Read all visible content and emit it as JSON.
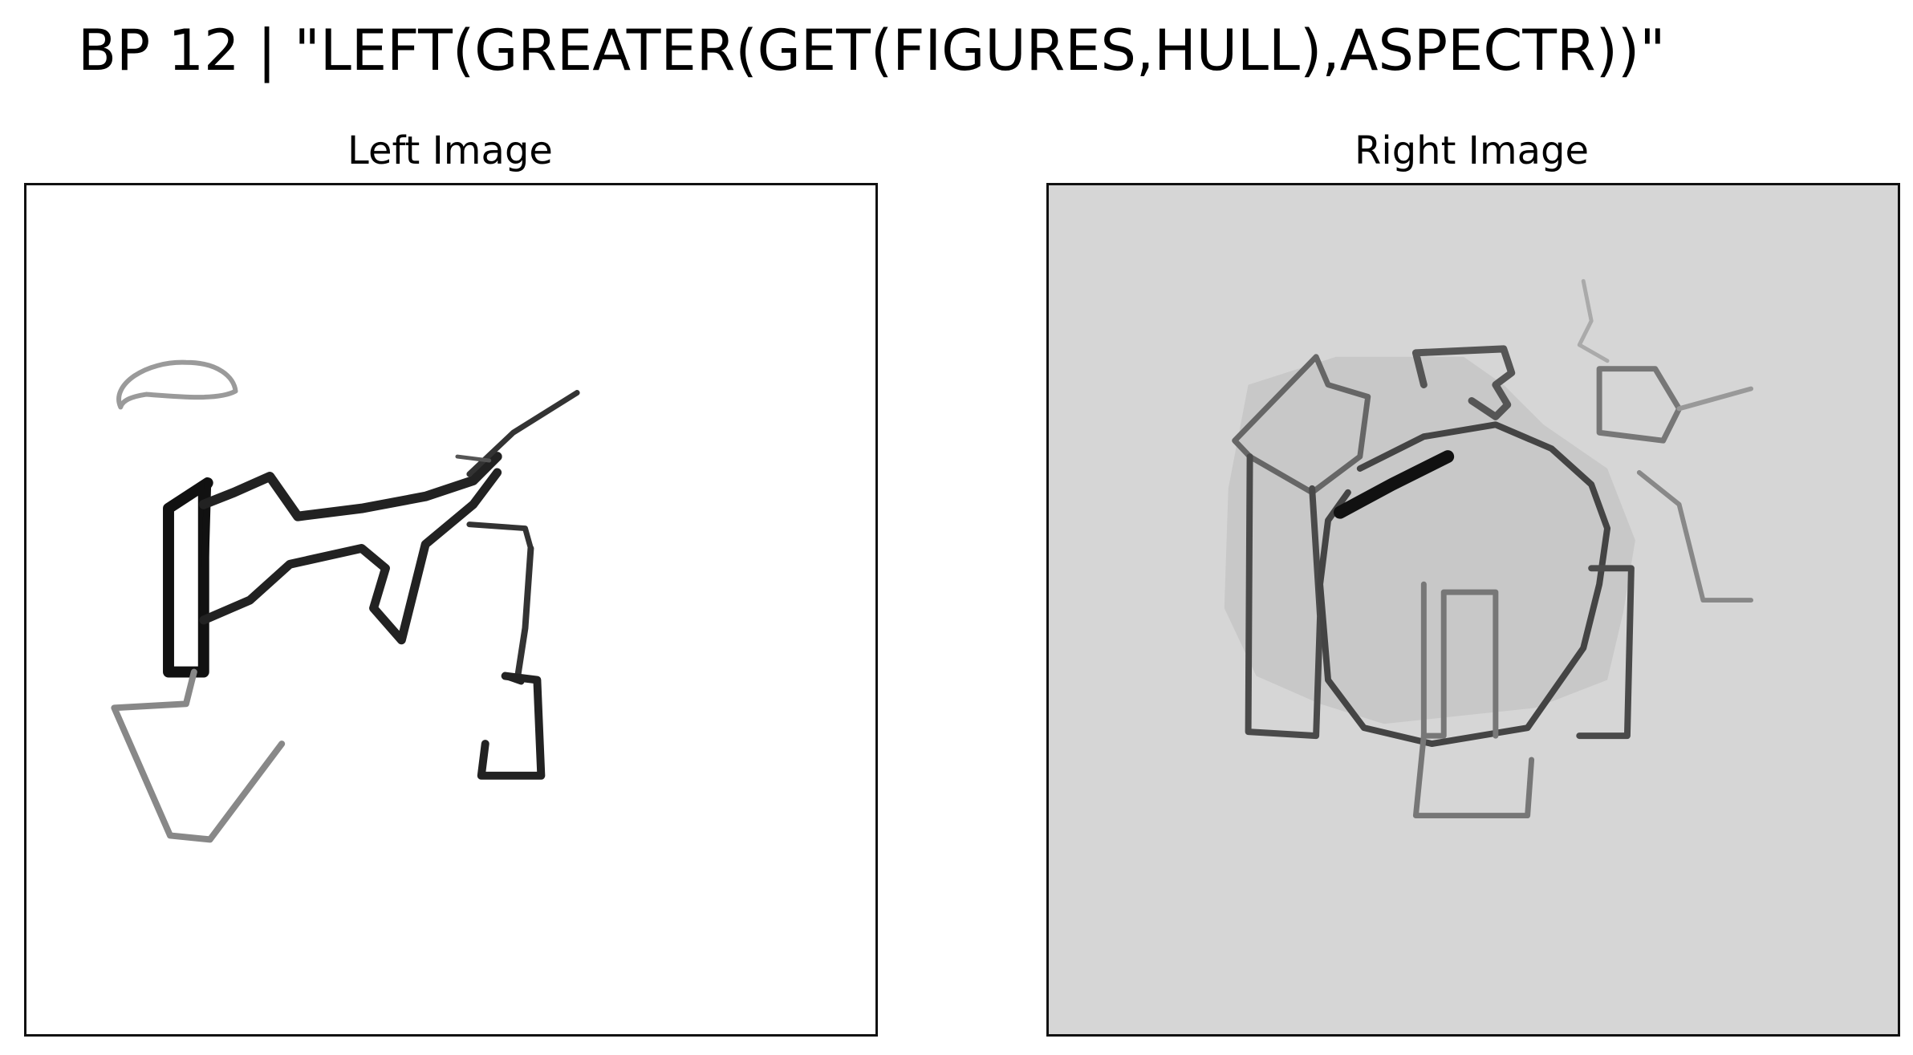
{
  "header": {
    "title": "BP 12 | \"LEFT(GREATER(GET(FIGURES,HULL),ASPECTR))\""
  },
  "panels": {
    "left": {
      "label": "Left Image",
      "background": "#ffffff",
      "stroke": "#1a1a1a"
    },
    "right": {
      "label": "Right Image",
      "background": "#d6d6d6",
      "stroke": "#2a2a2a"
    }
  }
}
